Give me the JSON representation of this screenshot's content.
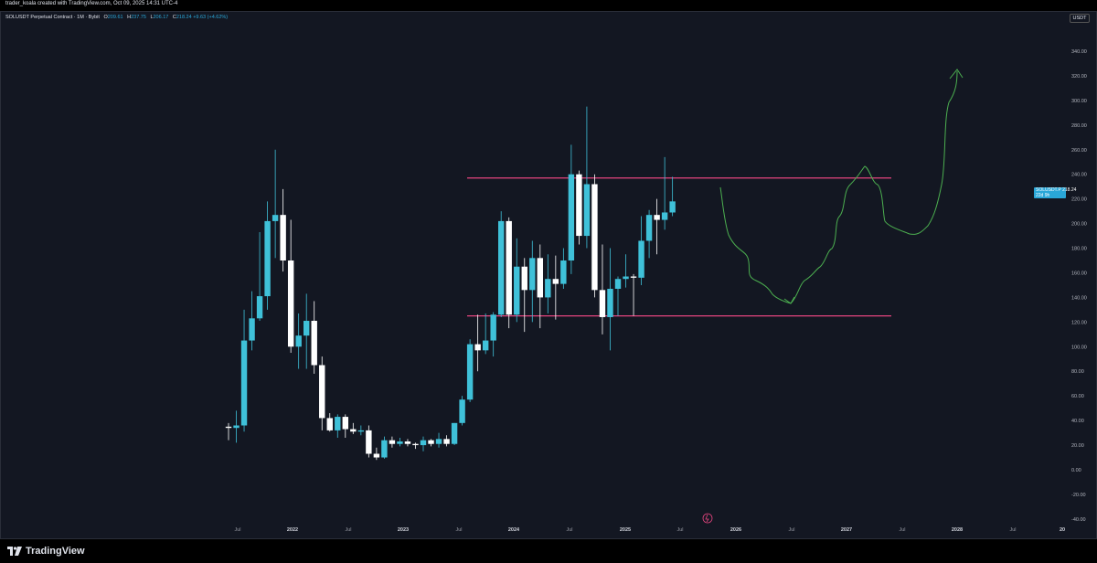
{
  "header": {
    "watermark": "trader_koala created with TradingView.com, Oct 09, 2025 14:31 UTC-4"
  },
  "legend": {
    "symbol": "SOLUSDT Perpetual Contract · 1M · Bybit",
    "open_key": "O",
    "open": "209.61",
    "high_key": "H",
    "high": "237.75",
    "low_key": "L",
    "low": "206.17",
    "close_key": "C",
    "close": "218.24",
    "change": "+9.63 (+4.62%)"
  },
  "price_scale": {
    "currency": "USDT",
    "labels": [
      "340.00",
      "320.00",
      "300.00",
      "280.00",
      "260.00",
      "240.00",
      "220.00",
      "200.00",
      "180.00",
      "160.00",
      "140.00",
      "120.00",
      "100.00",
      "80.00",
      "60.00",
      "40.00",
      "20.00",
      "0.00",
      "-20.00",
      "-40.00"
    ]
  },
  "price_tag": {
    "symbol": "SOLUSDT.P",
    "price": "218.24",
    "countdown": "22d 9h"
  },
  "time_axis": {
    "labels": [
      "Jul",
      "2022",
      "Jul",
      "2023",
      "Jul",
      "2024",
      "Jul",
      "2025",
      "Jul",
      "2026",
      "Jul",
      "2027",
      "Jul",
      "2028",
      "Jul",
      "20"
    ]
  },
  "footer": {
    "brand": "TradingView"
  },
  "colors": {
    "up": "#3fc1d9",
    "down": "#ffffff",
    "resistance": "#e5457f",
    "projection": "#4caf50",
    "background": "#131722"
  },
  "chart_data": {
    "type": "candlestick",
    "symbol": "SOLUSDT.P",
    "interval": "1M",
    "ylim": [
      -40,
      340
    ],
    "horizontal_levels": [
      237,
      125
    ],
    "candles": [
      {
        "o": 35,
        "h": 38,
        "l": 24,
        "c": 34
      },
      {
        "o": 34,
        "h": 48,
        "l": 22,
        "c": 36
      },
      {
        "o": 36,
        "h": 130,
        "l": 31,
        "c": 105
      },
      {
        "o": 105,
        "h": 145,
        "l": 97,
        "c": 123
      },
      {
        "o": 123,
        "h": 193,
        "l": 121,
        "c": 141
      },
      {
        "o": 141,
        "h": 218,
        "l": 130,
        "c": 202
      },
      {
        "o": 202,
        "h": 260,
        "l": 172,
        "c": 207
      },
      {
        "o": 207,
        "h": 228,
        "l": 161,
        "c": 170
      },
      {
        "o": 170,
        "h": 203,
        "l": 95,
        "c": 100
      },
      {
        "o": 100,
        "h": 127,
        "l": 82,
        "c": 109
      },
      {
        "o": 109,
        "h": 143,
        "l": 82,
        "c": 121
      },
      {
        "o": 121,
        "h": 137,
        "l": 78,
        "c": 85
      },
      {
        "o": 85,
        "h": 92,
        "l": 32,
        "c": 42
      },
      {
        "o": 42,
        "h": 46,
        "l": 31,
        "c": 32
      },
      {
        "o": 32,
        "h": 45,
        "l": 26,
        "c": 43
      },
      {
        "o": 43,
        "h": 45,
        "l": 26,
        "c": 33
      },
      {
        "o": 33,
        "h": 38,
        "l": 29,
        "c": 31
      },
      {
        "o": 31,
        "h": 36,
        "l": 28,
        "c": 32
      },
      {
        "o": 32,
        "h": 36,
        "l": 10,
        "c": 13
      },
      {
        "o": 13,
        "h": 18,
        "l": 8,
        "c": 10
      },
      {
        "o": 10,
        "h": 27,
        "l": 9,
        "c": 24
      },
      {
        "o": 24,
        "h": 27,
        "l": 18,
        "c": 21
      },
      {
        "o": 21,
        "h": 26,
        "l": 19,
        "c": 23
      },
      {
        "o": 23,
        "h": 25,
        "l": 19,
        "c": 21
      },
      {
        "o": 21,
        "h": 22,
        "l": 17,
        "c": 20
      },
      {
        "o": 20,
        "h": 27,
        "l": 15,
        "c": 24
      },
      {
        "o": 24,
        "h": 25,
        "l": 19,
        "c": 21
      },
      {
        "o": 21,
        "h": 30,
        "l": 18,
        "c": 25
      },
      {
        "o": 25,
        "h": 28,
        "l": 19,
        "c": 21
      },
      {
        "o": 21,
        "h": 38,
        "l": 20,
        "c": 38
      },
      {
        "o": 38,
        "h": 60,
        "l": 36,
        "c": 57
      },
      {
        "o": 57,
        "h": 106,
        "l": 55,
        "c": 102
      },
      {
        "o": 102,
        "h": 126,
        "l": 80,
        "c": 97
      },
      {
        "o": 97,
        "h": 127,
        "l": 94,
        "c": 105
      },
      {
        "o": 105,
        "h": 128,
        "l": 92,
        "c": 126
      },
      {
        "o": 126,
        "h": 210,
        "l": 124,
        "c": 202
      },
      {
        "o": 202,
        "h": 205,
        "l": 115,
        "c": 126
      },
      {
        "o": 126,
        "h": 188,
        "l": 120,
        "c": 165
      },
      {
        "o": 165,
        "h": 172,
        "l": 112,
        "c": 146
      },
      {
        "o": 146,
        "h": 186,
        "l": 120,
        "c": 172
      },
      {
        "o": 172,
        "h": 183,
        "l": 115,
        "c": 140
      },
      {
        "o": 140,
        "h": 175,
        "l": 127,
        "c": 155
      },
      {
        "o": 155,
        "h": 174,
        "l": 122,
        "c": 151
      },
      {
        "o": 151,
        "h": 180,
        "l": 147,
        "c": 170
      },
      {
        "o": 170,
        "h": 264,
        "l": 159,
        "c": 240
      },
      {
        "o": 240,
        "h": 243,
        "l": 183,
        "c": 190
      },
      {
        "o": 190,
        "h": 295,
        "l": 180,
        "c": 232
      },
      {
        "o": 232,
        "h": 240,
        "l": 140,
        "c": 146
      },
      {
        "o": 146,
        "h": 183,
        "l": 110,
        "c": 124
      },
      {
        "o": 124,
        "h": 180,
        "l": 97,
        "c": 147
      },
      {
        "o": 147,
        "h": 157,
        "l": 125,
        "c": 155
      },
      {
        "o": 155,
        "h": 175,
        "l": 148,
        "c": 157
      },
      {
        "o": 157,
        "h": 159,
        "l": 125,
        "c": 156
      },
      {
        "o": 156,
        "h": 206,
        "l": 150,
        "c": 186
      },
      {
        "o": 186,
        "h": 211,
        "l": 172,
        "c": 207
      },
      {
        "o": 207,
        "h": 220,
        "l": 175,
        "c": 203
      },
      {
        "o": 203,
        "h": 254,
        "l": 195,
        "c": 209
      },
      {
        "o": 209,
        "h": 238,
        "l": 206,
        "c": 218
      }
    ]
  }
}
